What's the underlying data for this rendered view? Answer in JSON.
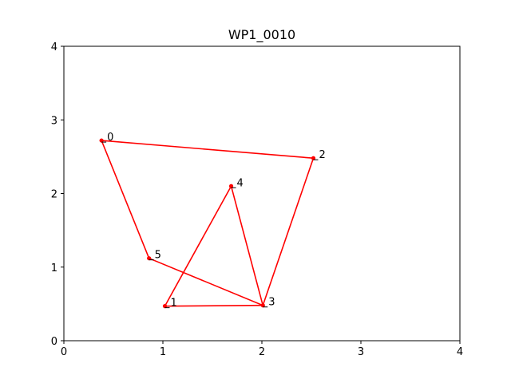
{
  "chart_data": {
    "type": "line",
    "title": "WP1_0010",
    "xlabel": "",
    "ylabel": "",
    "xlim": [
      0,
      4
    ],
    "ylim": [
      0,
      4
    ],
    "xticks": [
      "0",
      "1",
      "2",
      "3",
      "4"
    ],
    "yticks": [
      "0",
      "1",
      "2",
      "3",
      "4"
    ],
    "grid": false,
    "color": "#ff0000",
    "points": [
      {
        "label": "0",
        "x": 0.38,
        "y": 2.72
      },
      {
        "label": "1",
        "x": 1.02,
        "y": 0.47
      },
      {
        "label": "2",
        "x": 2.52,
        "y": 2.48
      },
      {
        "label": "3",
        "x": 2.01,
        "y": 0.48
      },
      {
        "label": "4",
        "x": 1.69,
        "y": 2.1
      },
      {
        "label": "5",
        "x": 0.86,
        "y": 1.12
      }
    ],
    "edges": [
      [
        0,
        2
      ],
      [
        2,
        3
      ],
      [
        3,
        1
      ],
      [
        1,
        4
      ],
      [
        4,
        3
      ],
      [
        3,
        5
      ],
      [
        5,
        0
      ]
    ]
  }
}
